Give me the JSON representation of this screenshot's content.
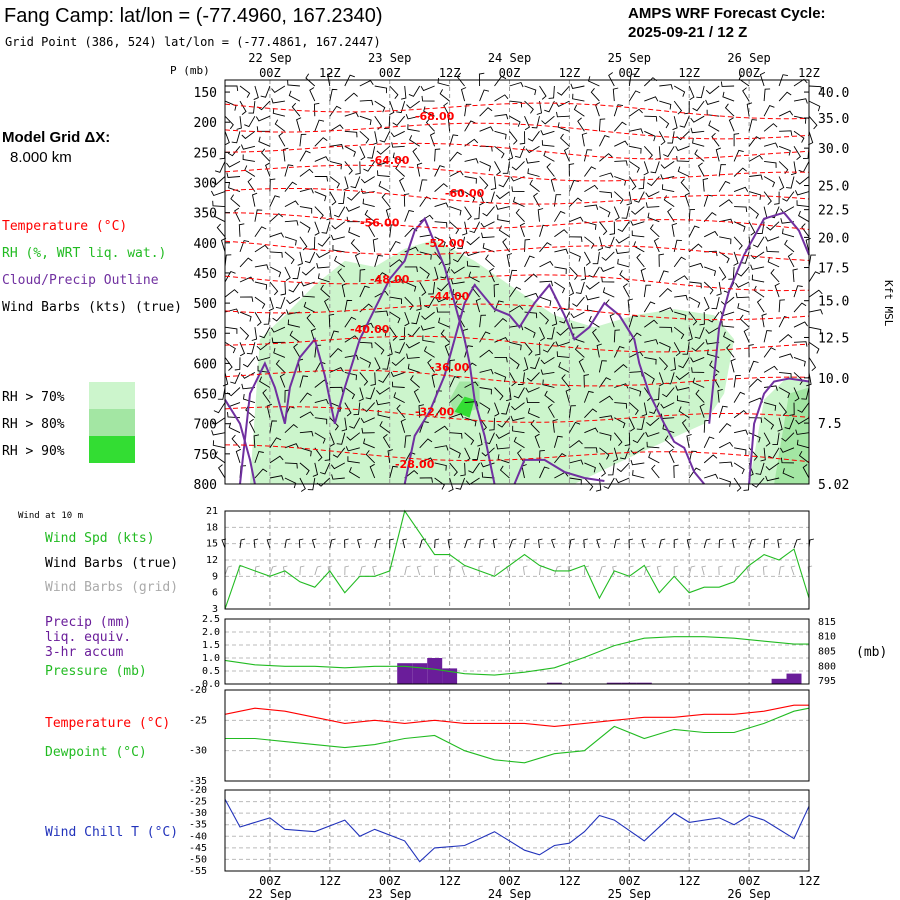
{
  "header": {
    "title": "Fang Camp:  lat/lon = (-77.4960, 167.2340)",
    "subtitle": "Grid Point (386, 524) lat/lon = (-77.4861, 167.2447)",
    "cycle_label": "AMPS WRF Forecast Cycle:",
    "cycle_value": "2025-09-21 / 12  Z",
    "p_unit": "P (mb)",
    "model_grid_label": "Model Grid ΔX:",
    "model_grid_value": "8.000 km"
  },
  "legend": {
    "temperature": "Temperature (°C)",
    "rh": "RH (%, WRT liq. wat.)",
    "cloud": "Cloud/Precip Outline",
    "wind": "Wind Barbs (kts) (true)",
    "rh70": "RH > 70%",
    "rh80": "RH > 80%",
    "rh90": "RH > 90%",
    "kft_label": "Kft MSL",
    "wind10m": "Wind at 10 m",
    "wind_spd": "Wind Spd (kts)",
    "wind_barbs_true": "Wind Barbs (true)",
    "wind_barbs_grid": "Wind Barbs (grid)",
    "precip": "Precip (mm)",
    "precip2": "liq. equiv.",
    "precip3": "3-hr accum",
    "pressure": "Pressure (mb)",
    "pressure_unit": "(mb)",
    "temp2": "Temperature (°C)",
    "dewpoint": "Dewpoint (°C)",
    "windchill": "Wind Chill T (°C)"
  },
  "colors": {
    "temperature": "#ff0000",
    "rh70": "#ccf5cc",
    "rh80": "#a3e6a3",
    "rh90": "#33dd33",
    "cloud": "#7030a0",
    "wind_spd": "#22bb22",
    "precip": "#6a1d9a",
    "dewpoint": "#22bb22",
    "windchill": "#2233bb",
    "grid_barb": "#aaaaaa"
  },
  "time_axis": {
    "top_hours": [
      "00Z",
      "12Z",
      "00Z",
      "12Z",
      "00Z",
      "12Z",
      "00Z",
      "12Z",
      "00Z",
      "12Z"
    ],
    "top_dates": [
      "22 Sep",
      "23 Sep",
      "24 Sep",
      "25 Sep",
      "26 Sep"
    ],
    "bottom_hours": [
      "00Z",
      "12Z",
      "00Z",
      "12Z",
      "00Z",
      "12Z",
      "00Z",
      "12Z",
      "00Z",
      "12Z"
    ],
    "bottom_dates": [
      "22 Sep",
      "23 Sep",
      "24 Sep",
      "25 Sep",
      "26 Sep"
    ]
  },
  "chart_data": [
    {
      "type": "contour",
      "name": "cross-section",
      "y_unit": "P (mb)",
      "pressure_ticks": [
        "150",
        "200",
        "250",
        "300",
        "350",
        "400",
        "450",
        "500",
        "550",
        "600",
        "650",
        "700",
        "750",
        "800"
      ],
      "kft_ticks": [
        "40.0",
        "35.0",
        "30.0",
        "25.0",
        "22.5",
        "20.0",
        "17.5",
        "15.0",
        "12.5",
        "10.0",
        "7.5",
        "5.02"
      ],
      "kft_pressures": [
        150,
        193,
        243,
        305,
        345,
        391,
        441,
        496,
        557,
        624,
        699,
        800
      ],
      "temperature_labels": [
        {
          "t": 42,
          "p": 190,
          "text": "-68.00"
        },
        {
          "t": 33,
          "p": 263,
          "text": "-64.00"
        },
        {
          "t": 48,
          "p": 317,
          "text": "-60.00"
        },
        {
          "t": 31,
          "p": 366,
          "text": "-56.00"
        },
        {
          "t": 44,
          "p": 400,
          "text": "-52.00"
        },
        {
          "t": 33,
          "p": 460,
          "text": "-48.00"
        },
        {
          "t": 45,
          "p": 488,
          "text": "-44.00"
        },
        {
          "t": 29,
          "p": 543,
          "text": "-40.00"
        },
        {
          "t": 45,
          "p": 606,
          "text": "-36.00"
        },
        {
          "t": 42,
          "p": 680,
          "text": "-32.00"
        },
        {
          "t": 38,
          "p": 767,
          "text": "-28.00"
        }
      ]
    },
    {
      "type": "line",
      "name": "wind-speed",
      "xlabel": "",
      "y_ticks": [
        "21",
        "18",
        "15",
        "12",
        "9",
        "6",
        "3"
      ],
      "ylim": [
        3,
        21
      ],
      "x": [
        0,
        3,
        6,
        9,
        12,
        15,
        18,
        21,
        24,
        27,
        30,
        33,
        36,
        39,
        42,
        45,
        48,
        51,
        54,
        57,
        60,
        63,
        66,
        69,
        72,
        75,
        78,
        81,
        84,
        87,
        90,
        93,
        96,
        99,
        102,
        105,
        108,
        111,
        114,
        117
      ],
      "values": [
        3,
        11,
        10,
        9,
        10,
        8,
        7,
        10,
        6,
        9,
        9,
        10,
        21,
        17,
        13,
        13,
        11,
        10,
        9,
        11,
        13,
        11,
        10,
        10,
        11,
        5,
        10,
        9,
        11,
        6,
        9,
        6,
        7,
        7,
        8,
        11,
        13,
        12,
        14,
        5
      ]
    },
    {
      "type": "bar+line",
      "name": "precip-pressure",
      "left_ticks": [
        "2.5",
        "2.0",
        "1.5",
        "1.0",
        "0.5",
        "0.0"
      ],
      "right_ticks": [
        "815",
        "810",
        "805",
        "800",
        "795"
      ],
      "precip_ylim": [
        0,
        2.5
      ],
      "pressure_ylim": [
        794,
        816
      ],
      "precip_bars": [
        {
          "x": 36,
          "value": 0.8
        },
        {
          "x": 39,
          "value": 0.8
        },
        {
          "x": 42,
          "value": 1.0
        },
        {
          "x": 45,
          "value": 0.6
        },
        {
          "x": 66,
          "value": 0.05
        },
        {
          "x": 78,
          "value": 0.05
        },
        {
          "x": 81,
          "value": 0.05
        },
        {
          "x": 84,
          "value": 0.05
        },
        {
          "x": 111,
          "value": 0.2
        },
        {
          "x": 114,
          "value": 0.4
        }
      ],
      "x": [
        0,
        6,
        12,
        18,
        24,
        30,
        36,
        42,
        48,
        54,
        60,
        66,
        72,
        78,
        84,
        90,
        96,
        102,
        108,
        114,
        117
      ],
      "pressure": [
        802,
        800.5,
        800,
        800,
        799.5,
        800,
        800,
        799,
        797.5,
        797,
        798,
        799.5,
        803,
        807,
        809.5,
        810,
        810,
        809.5,
        808.5,
        807.5,
        807.5
      ]
    },
    {
      "type": "line",
      "name": "temperature-dewpoint",
      "y_ticks": [
        "-20",
        "-25",
        "-30",
        "-35"
      ],
      "ylim": [
        -35,
        -20
      ],
      "x": [
        0,
        6,
        12,
        18,
        24,
        30,
        36,
        42,
        48,
        54,
        60,
        66,
        72,
        78,
        84,
        90,
        96,
        102,
        108,
        114,
        117
      ],
      "temperature": [
        -24,
        -23,
        -23.5,
        -24.5,
        -25.5,
        -25,
        -25.5,
        -25,
        -25.5,
        -25.5,
        -25.5,
        -26,
        -25.5,
        -25,
        -24.5,
        -24.5,
        -24,
        -24,
        -23.5,
        -22.5,
        -22.5
      ],
      "dewpoint": [
        -28,
        -28,
        -28.5,
        -29,
        -29.5,
        -29,
        -28,
        -27.5,
        -30,
        -31.5,
        -32,
        -30.5,
        -30,
        -26,
        -28,
        -26.5,
        -27,
        -27,
        -25.5,
        -23.5,
        -23
      ]
    },
    {
      "type": "line",
      "name": "wind-chill",
      "y_ticks": [
        "-20",
        "-25",
        "-30",
        "-35",
        "-40",
        "-45",
        "-50",
        "-55"
      ],
      "ylim": [
        -55,
        -20
      ],
      "x": [
        0,
        3,
        9,
        12,
        18,
        24,
        27,
        30,
        36,
        39,
        42,
        48,
        51,
        54,
        60,
        63,
        66,
        69,
        72,
        75,
        78,
        84,
        90,
        93,
        99,
        102,
        105,
        108,
        114,
        117
      ],
      "values": [
        -24,
        -36,
        -32,
        -37,
        -38,
        -33,
        -40,
        -37,
        -42,
        -51,
        -45,
        -44,
        -41,
        -38,
        -46,
        -48,
        -44,
        -43,
        -38,
        -31,
        -33,
        -42,
        -30,
        -34,
        -32,
        -35,
        -31,
        -33,
        -41,
        -27
      ]
    }
  ]
}
